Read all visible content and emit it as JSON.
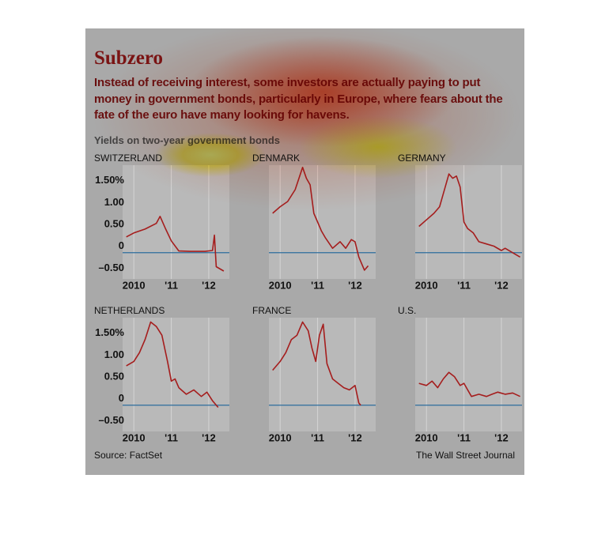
{
  "title": "Subzero",
  "subtitle": "Instead of receiving interest, some investors are actually paying to put money in government bonds, particularly in Europe, where fears about the fate of the euro have many looking for havens.",
  "chart_label": "Yields on two-year government bonds",
  "source": "Source: FactSet",
  "credit": "The Wall Street Journal",
  "chart_data": [
    {
      "type": "line",
      "title": "SWITZERLAND",
      "color": "#a51d1d",
      "x": [
        2009.8,
        2010.0,
        2010.3,
        2010.6,
        2010.7,
        2010.85,
        2011.0,
        2011.2,
        2011.5,
        2011.9,
        2012.1,
        2012.15,
        2012.2,
        2012.4
      ],
      "values": [
        0.36,
        0.45,
        0.54,
        0.67,
        0.83,
        0.54,
        0.27,
        0.04,
        0.03,
        0.03,
        0.05,
        0.4,
        -0.32,
        -0.42
      ],
      "xlim": [
        2009.7,
        2012.55
      ],
      "ylim": [
        -0.6,
        2.0
      ],
      "xticks": [
        {
          "value": 2010,
          "label": "2010"
        },
        {
          "value": 2011,
          "label": "'11"
        },
        {
          "value": 2012,
          "label": "'12"
        }
      ],
      "yticks": [
        {
          "value": -0.5,
          "label": "–0.50"
        },
        0,
        {
          "value": 0.5,
          "label": "0.50"
        },
        {
          "value": 1,
          "label": "1.00"
        },
        {
          "value": 1.5,
          "label": "1.50%"
        }
      ]
    },
    {
      "type": "line",
      "title": "DENMARK",
      "color": "#a51d1d",
      "x": [
        2009.8,
        2010.0,
        2010.2,
        2010.4,
        2010.6,
        2010.7,
        2010.8,
        2010.9,
        2011.0,
        2011.1,
        2011.2,
        2011.4,
        2011.6,
        2011.75,
        2011.9,
        2012.0,
        2012.1,
        2012.25,
        2012.35
      ],
      "values": [
        0.9,
        1.05,
        1.17,
        1.44,
        1.95,
        1.7,
        1.55,
        0.9,
        0.7,
        0.5,
        0.35,
        0.1,
        0.25,
        0.1,
        0.3,
        0.25,
        -0.1,
        -0.4,
        -0.3
      ],
      "xlim": [
        2009.7,
        2012.55
      ],
      "ylim": [
        -0.6,
        2.0
      ],
      "xticks": [
        {
          "value": 2010,
          "label": "2010"
        },
        {
          "value": 2011,
          "label": "'11"
        },
        {
          "value": 2012,
          "label": "'12"
        }
      ]
    },
    {
      "type": "line",
      "title": "GERMANY",
      "color": "#a51d1d",
      "x": [
        2009.8,
        2010.0,
        2010.2,
        2010.35,
        2010.5,
        2010.6,
        2010.7,
        2010.8,
        2010.9,
        2011.0,
        2011.1,
        2011.25,
        2011.4,
        2011.6,
        2011.8,
        2012.0,
        2012.1,
        2012.3,
        2012.5
      ],
      "values": [
        0.6,
        0.75,
        0.9,
        1.05,
        1.5,
        1.8,
        1.7,
        1.75,
        1.5,
        0.7,
        0.55,
        0.45,
        0.25,
        0.2,
        0.15,
        0.05,
        0.1,
        0.0,
        -0.1
      ],
      "xlim": [
        2009.7,
        2012.55
      ],
      "ylim": [
        -0.6,
        2.0
      ],
      "xticks": [
        {
          "value": 2010,
          "label": "2010"
        },
        {
          "value": 2011,
          "label": "'11"
        },
        {
          "value": 2012,
          "label": "'12"
        }
      ]
    },
    {
      "type": "line",
      "title": "NETHERLANDS",
      "color": "#a51d1d",
      "x": [
        2009.8,
        2010.0,
        2010.15,
        2010.3,
        2010.45,
        2010.6,
        2010.75,
        2010.9,
        2011.0,
        2011.1,
        2011.2,
        2011.4,
        2011.6,
        2011.8,
        2011.95,
        2012.1,
        2012.25
      ],
      "values": [
        0.9,
        1.0,
        1.2,
        1.5,
        1.9,
        1.8,
        1.6,
        1.0,
        0.55,
        0.6,
        0.4,
        0.25,
        0.35,
        0.2,
        0.3,
        0.1,
        -0.05
      ],
      "xlim": [
        2009.7,
        2012.55
      ],
      "ylim": [
        -0.6,
        2.0
      ],
      "xticks": [
        {
          "value": 2010,
          "label": "2010"
        },
        {
          "value": 2011,
          "label": "'11"
        },
        {
          "value": 2012,
          "label": "'12"
        }
      ],
      "yticks": [
        {
          "value": -0.5,
          "label": "–0.50"
        },
        0,
        {
          "value": 0.5,
          "label": "0.50"
        },
        {
          "value": 1,
          "label": "1.00"
        },
        {
          "value": 1.5,
          "label": "1.50%"
        }
      ]
    },
    {
      "type": "line",
      "title": "FRANCE",
      "color": "#a51d1d",
      "x": [
        2009.8,
        2010.0,
        2010.15,
        2010.3,
        2010.45,
        2010.6,
        2010.75,
        2010.85,
        2010.95,
        2011.05,
        2011.15,
        2011.25,
        2011.4,
        2011.55,
        2011.7,
        2011.85,
        2012.0,
        2012.1,
        2012.15
      ],
      "values": [
        0.8,
        1.0,
        1.2,
        1.5,
        1.6,
        1.9,
        1.7,
        1.3,
        1.0,
        1.6,
        1.85,
        0.95,
        0.6,
        0.5,
        0.4,
        0.35,
        0.45,
        0.05,
        0.0
      ],
      "xlim": [
        2009.7,
        2012.55
      ],
      "ylim": [
        -0.6,
        2.0
      ],
      "xticks": [
        {
          "value": 2010,
          "label": "2010"
        },
        {
          "value": 2011,
          "label": "'11"
        },
        {
          "value": 2012,
          "label": "'12"
        }
      ]
    },
    {
      "type": "line",
      "title": "U.S.",
      "color": "#a51d1d",
      "x": [
        2009.8,
        2010.0,
        2010.15,
        2010.3,
        2010.45,
        2010.6,
        2010.75,
        2010.9,
        2011.0,
        2011.1,
        2011.2,
        2011.4,
        2011.6,
        2011.75,
        2011.9,
        2012.1,
        2012.3,
        2012.5
      ],
      "values": [
        0.5,
        0.45,
        0.55,
        0.4,
        0.6,
        0.75,
        0.65,
        0.45,
        0.5,
        0.35,
        0.2,
        0.25,
        0.2,
        0.25,
        0.3,
        0.25,
        0.28,
        0.2
      ],
      "xlim": [
        2009.7,
        2012.55
      ],
      "ylim": [
        -0.6,
        2.0
      ],
      "xticks": [
        {
          "value": 2010,
          "label": "2010"
        },
        {
          "value": 2011,
          "label": "'11"
        },
        {
          "value": 2012,
          "label": "'12"
        }
      ]
    }
  ]
}
